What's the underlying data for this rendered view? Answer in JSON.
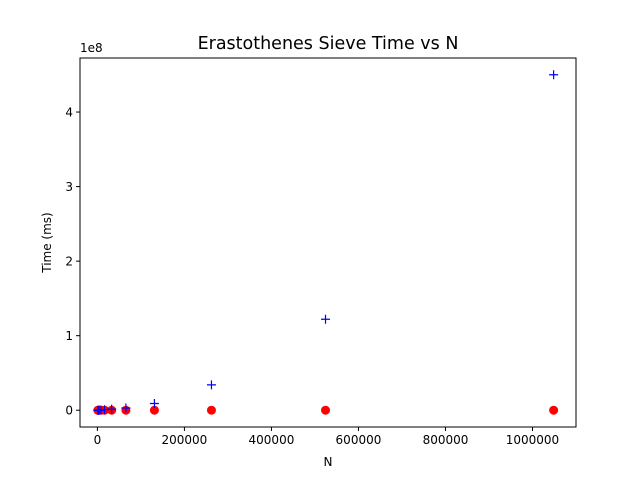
{
  "chart_data": {
    "type": "scatter",
    "title": "Erastothenes Sieve Time vs N",
    "xlabel": "N",
    "ylabel": "Time (ms)",
    "y_offset_label": "1e8",
    "xlim": [
      -40000,
      1100000
    ],
    "ylim": [
      -22500000.0,
      472500000.0
    ],
    "x_ticks": [
      0,
      200000,
      400000,
      600000,
      800000,
      1000000
    ],
    "x_tick_labels": [
      "0",
      "200000",
      "400000",
      "600000",
      "800000",
      "1000000"
    ],
    "y_ticks": [
      0,
      100000000,
      200000000,
      300000000,
      400000000
    ],
    "y_tick_labels": [
      "0",
      "1",
      "2",
      "3",
      "4"
    ],
    "grid": false,
    "series": [
      {
        "marker": "plus",
        "color": "#0000ff",
        "x": [
          1024,
          2048,
          4096,
          8192,
          16384,
          32768,
          65536,
          131072,
          262144,
          524288,
          1048576
        ],
        "y": [
          0,
          0,
          100000,
          300000,
          700000,
          1500000,
          3000000,
          9000000,
          34000000,
          122000000,
          450000000
        ]
      },
      {
        "marker": "circle",
        "color": "#ff0000",
        "x": [
          1024,
          2048,
          4096,
          8192,
          16384,
          32768,
          65536,
          131072,
          262144,
          524288,
          1048576
        ],
        "y": [
          0,
          0,
          0,
          0,
          0,
          0,
          0,
          0,
          0,
          0,
          0
        ]
      }
    ]
  }
}
